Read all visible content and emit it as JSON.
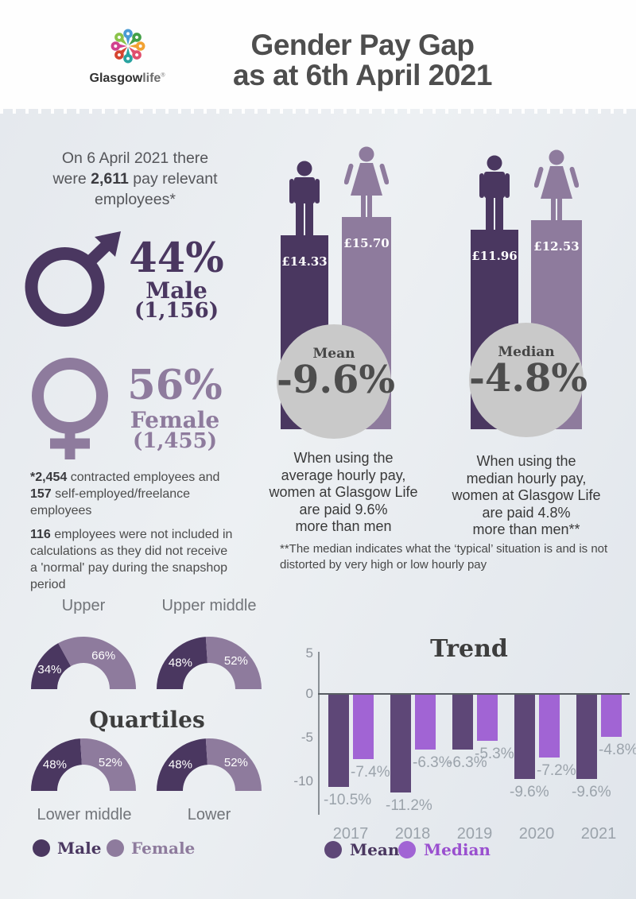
{
  "colors": {
    "male_dark": "#4a3760",
    "female_light": "#8e7b9d",
    "trend_mean": "#5e4777",
    "trend_median": "#a164d4",
    "trend_median_text": "#9a50cf",
    "circle_gray": "#c9c9c9"
  },
  "header": {
    "title_line1": "Gender Pay Gap",
    "title_line2": "as at 6th April 2021",
    "logo": {
      "icon": "glasgow-life-flower-logo",
      "brand_bold": "Glasgow",
      "brand_light": "life",
      "reg_mark": "®"
    }
  },
  "overview": {
    "intro": {
      "pre": "On 6 April 2021 there\nwere ",
      "bold": "2,611",
      "post": " pay relevant\nemployees*"
    },
    "male": {
      "percent": "44%",
      "label": "Male",
      "count": "(1,156)"
    },
    "female": {
      "percent": "56%",
      "label": "Female",
      "count": "(1,455)"
    },
    "footnote1": {
      "bold1": "*2,454",
      "text1": " contracted employees and\n",
      "bold2": "157",
      "text2": " self-employed/freelance\nemployees"
    },
    "footnote2": {
      "bold": "116",
      "text": " employees were not included in\ncalculations as they did not receive\na 'normal' pay during the snapshop\nperiod"
    }
  },
  "pay_gap": {
    "mean": {
      "male_value": "£14.33",
      "female_value": "£15.70",
      "circle_label": "Mean",
      "gap_value": "-9.6%",
      "caption": "When using the\naverage hourly pay,\nwomen at Glasgow Life\nare paid 9.6%\nmore than men"
    },
    "median": {
      "male_value": "£11.96",
      "female_value": "£12.53",
      "circle_label": "Median",
      "gap_value": "-4.8%",
      "caption": "When using the\nmedian hourly pay,\nwomen at Glasgow Life\nare paid 4.8%\nmore than men**"
    },
    "median_note": "**The median indicates what the ‘typical’ situation is and is not\ndistorted by very high or low hourly pay"
  },
  "quartiles": {
    "title": "Quartiles",
    "legend": {
      "male": "Male",
      "female": "Female"
    }
  },
  "trend": {
    "title": "Trend",
    "legend": {
      "mean": "Mean",
      "median": "Median"
    }
  },
  "chart_data": [
    {
      "type": "bar",
      "name": "mean-hourly-pay",
      "title": "Mean",
      "categories": [
        "Male",
        "Female"
      ],
      "values": [
        14.33,
        15.7
      ],
      "value_labels": [
        "£14.33",
        "£15.70"
      ],
      "unit": "£/hour",
      "gap": "-9.6%"
    },
    {
      "type": "bar",
      "name": "median-hourly-pay",
      "title": "Median",
      "categories": [
        "Male",
        "Female"
      ],
      "values": [
        11.96,
        12.53
      ],
      "value_labels": [
        "£11.96",
        "£12.53"
      ],
      "unit": "£/hour",
      "gap": "-4.8%"
    },
    {
      "type": "pie",
      "name": "pay-quartiles",
      "title": "Quartiles",
      "half_donut": true,
      "series_labels": [
        "Male",
        "Female"
      ],
      "charts": [
        {
          "label": "Upper",
          "male": 34,
          "female": 66
        },
        {
          "label": "Upper middle",
          "male": 48,
          "female": 52
        },
        {
          "label": "Lower middle",
          "male": 48,
          "female": 52
        },
        {
          "label": "Lower",
          "male": 48,
          "female": 52
        }
      ]
    },
    {
      "type": "bar",
      "name": "trend",
      "title": "Trend",
      "categories": [
        "2017",
        "2018",
        "2019",
        "2020",
        "2021"
      ],
      "series": [
        {
          "name": "Mean",
          "values": [
            -10.5,
            -11.2,
            -6.3,
            -9.6,
            -9.6
          ]
        },
        {
          "name": "Median",
          "values": [
            -7.4,
            -6.3,
            -5.3,
            -7.2,
            -4.8
          ]
        }
      ],
      "yticks": [
        5,
        0,
        -5,
        -10
      ],
      "ylim": [
        -12.5,
        5
      ],
      "unit": "%",
      "legend_position": "bottom"
    }
  ]
}
